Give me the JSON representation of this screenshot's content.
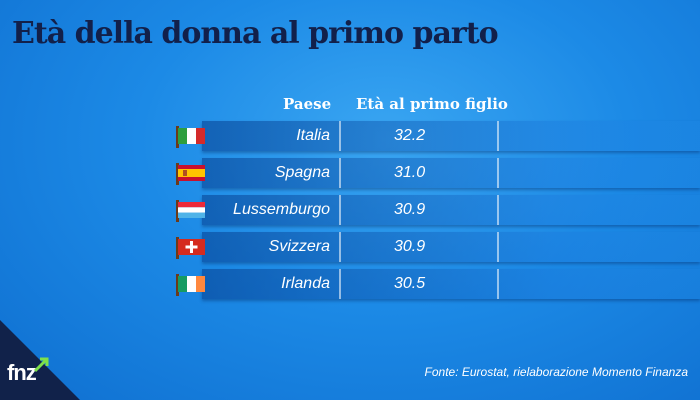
{
  "chart_data": {
    "type": "table",
    "title": "Età della donna al primo parto",
    "columns": [
      "Paese",
      "Età al primo figlio"
    ],
    "rows": [
      {
        "country": "Italia",
        "value": "32.2",
        "flag": "italy-flag"
      },
      {
        "country": "Spagna",
        "value": "31.0",
        "flag": "spain-flag"
      },
      {
        "country": "Lussemburgo",
        "value": "30.9",
        "flag": "luxembourg-flag"
      },
      {
        "country": "Svizzera",
        "value": "30.9",
        "flag": "switzerland-flag"
      },
      {
        "country": "Irlanda",
        "value": "30.5",
        "flag": "ireland-flag"
      }
    ],
    "source": "Fonte: Eurostat, rielaborazione Momento Finanza"
  },
  "logo": {
    "text": "fnz"
  },
  "colors": {
    "title": "#12204a",
    "background": "#1c8ae6",
    "corner": "#11224a",
    "logo_accent": "#7ee04a"
  }
}
